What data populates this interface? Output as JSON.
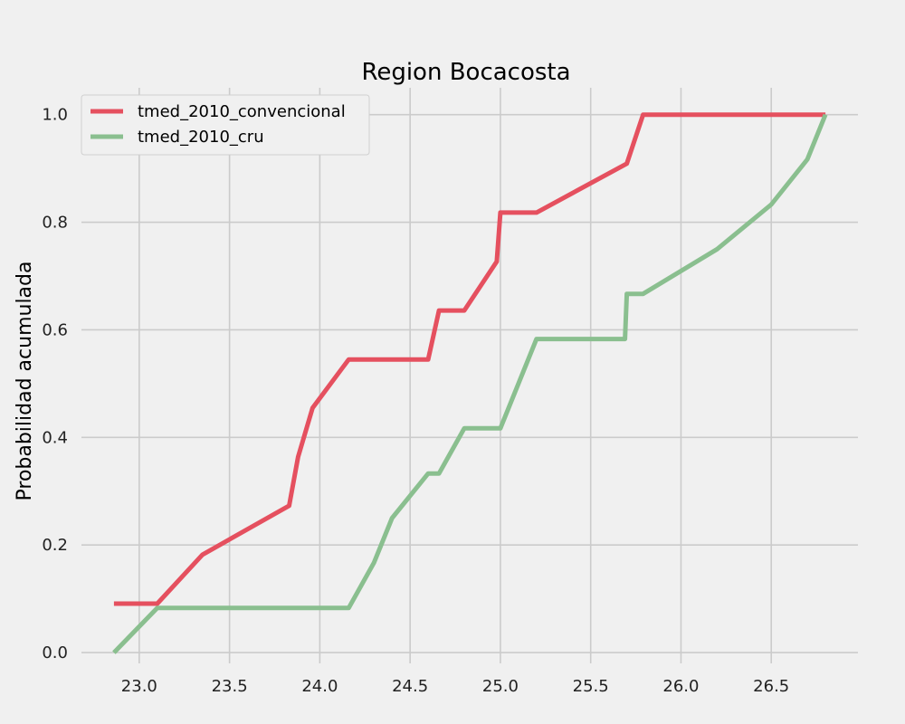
{
  "chart_data": {
    "type": "line",
    "title": "Region Bocacosta",
    "xlabel": "",
    "ylabel": "Probabilidad acumulada",
    "xlim": [
      22.68,
      26.98
    ],
    "ylim": [
      -0.02,
      1.05
    ],
    "xticks": [
      23.0,
      23.5,
      24.0,
      24.5,
      25.0,
      25.5,
      26.0,
      26.5
    ],
    "xtick_labels": [
      "23.0",
      "23.5",
      "24.0",
      "24.5",
      "25.0",
      "25.5",
      "26.0",
      "26.5"
    ],
    "yticks": [
      0.0,
      0.2,
      0.4,
      0.6,
      0.8,
      1.0
    ],
    "ytick_labels": [
      "0.0",
      "0.2",
      "0.4",
      "0.6",
      "0.8",
      "1.0"
    ],
    "grid": true,
    "legend_position": "top-left",
    "series": [
      {
        "name": "tmed_2010_convencional",
        "color": "#e5505f",
        "points": [
          [
            22.86,
            0.091
          ],
          [
            23.1,
            0.091
          ],
          [
            23.35,
            0.182
          ],
          [
            23.83,
            0.273
          ],
          [
            23.88,
            0.364
          ],
          [
            23.96,
            0.455
          ],
          [
            24.16,
            0.545
          ],
          [
            24.6,
            0.545
          ],
          [
            24.66,
            0.636
          ],
          [
            24.8,
            0.636
          ],
          [
            24.98,
            0.727
          ],
          [
            25.0,
            0.818
          ],
          [
            25.2,
            0.818
          ],
          [
            25.7,
            0.909
          ],
          [
            25.79,
            1.0
          ],
          [
            26.8,
            1.0
          ]
        ]
      },
      {
        "name": "tmed_2010_cru",
        "color": "#8abf8f",
        "points": [
          [
            22.86,
            0.0
          ],
          [
            23.1,
            0.083
          ],
          [
            24.16,
            0.083
          ],
          [
            24.3,
            0.167
          ],
          [
            24.4,
            0.25
          ],
          [
            24.6,
            0.333
          ],
          [
            24.66,
            0.333
          ],
          [
            24.8,
            0.417
          ],
          [
            25.0,
            0.417
          ],
          [
            25.2,
            0.583
          ],
          [
            25.69,
            0.583
          ],
          [
            25.7,
            0.667
          ],
          [
            25.79,
            0.667
          ],
          [
            26.2,
            0.75
          ],
          [
            26.5,
            0.833
          ],
          [
            26.7,
            0.917
          ],
          [
            26.8,
            1.0
          ]
        ]
      }
    ]
  }
}
